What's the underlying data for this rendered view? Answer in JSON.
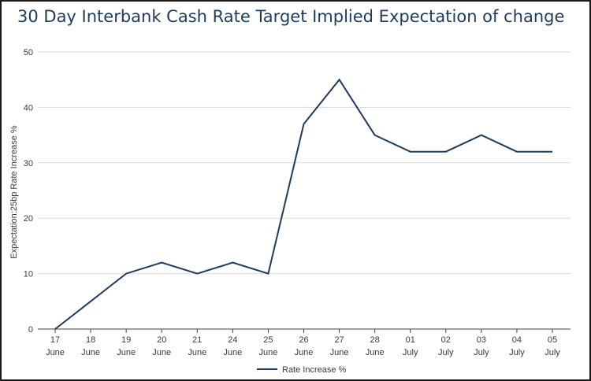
{
  "chart_data": {
    "type": "line",
    "title": "30 Day Interbank Cash Rate Target Implied Expectation of change",
    "ylabel": "Expectation:25bp Rate Increase %",
    "xlabel": "",
    "ylim": [
      0,
      50
    ],
    "yticks": [
      0,
      10,
      20,
      30,
      40,
      50
    ],
    "grid": true,
    "legend_position": "bottom",
    "categories": [
      [
        "17",
        "June"
      ],
      [
        "18",
        "June"
      ],
      [
        "19",
        "June"
      ],
      [
        "20",
        "June"
      ],
      [
        "21",
        "June"
      ],
      [
        "24",
        "June"
      ],
      [
        "25",
        "June"
      ],
      [
        "26",
        "June"
      ],
      [
        "27",
        "June"
      ],
      [
        "28",
        "June"
      ],
      [
        "01",
        "July"
      ],
      [
        "02",
        "July"
      ],
      [
        "03",
        "July"
      ],
      [
        "04",
        "July"
      ],
      [
        "05",
        "July"
      ]
    ],
    "series": [
      {
        "name": "Rate Increase %",
        "color": "#1f3b5c",
        "values": [
          0,
          5,
          10,
          12,
          10,
          12,
          10,
          37,
          45,
          35,
          32,
          32,
          35,
          32,
          32
        ]
      }
    ]
  }
}
